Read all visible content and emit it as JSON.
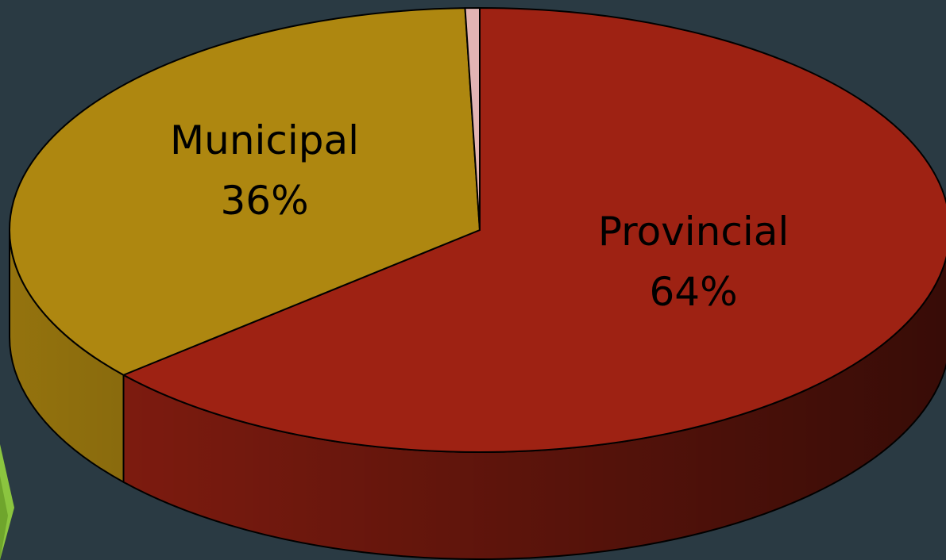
{
  "chart_data": {
    "type": "pie",
    "categories": [
      "Provincial",
      "Municipal",
      null
    ],
    "values": [
      64,
      36,
      0.5
    ],
    "value_labels": [
      "64%",
      "36%",
      null
    ],
    "colors": [
      "#9e2213",
      "#ae8710",
      "#e3b4b4"
    ],
    "start_angle": "top",
    "direction": "clockwise",
    "style": "3d"
  }
}
